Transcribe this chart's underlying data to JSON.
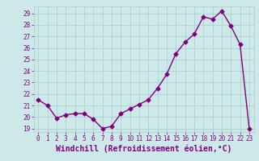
{
  "x": [
    0,
    1,
    2,
    3,
    4,
    5,
    6,
    7,
    8,
    9,
    10,
    11,
    12,
    13,
    14,
    15,
    16,
    17,
    18,
    19,
    20,
    21,
    22,
    23
  ],
  "y": [
    21.5,
    21.0,
    19.9,
    20.2,
    20.3,
    20.3,
    19.8,
    19.0,
    19.2,
    20.3,
    20.7,
    21.1,
    21.5,
    22.5,
    23.7,
    25.5,
    26.5,
    27.2,
    28.7,
    28.5,
    29.2,
    27.9,
    26.3,
    19.0
  ],
  "line_color": "#800080",
  "marker": "D",
  "marker_size": 2.5,
  "bg_color": "#cce8e8",
  "grid_color": "#aacccc",
  "xlabel": "Windchill (Refroidissement éolien,°C)",
  "xlabel_fontsize": 7,
  "ylim_min": 18.7,
  "ylim_max": 29.6,
  "yticks": [
    19,
    20,
    21,
    22,
    23,
    24,
    25,
    26,
    27,
    28,
    29
  ],
  "xticks": [
    0,
    1,
    2,
    3,
    4,
    5,
    6,
    7,
    8,
    9,
    10,
    11,
    12,
    13,
    14,
    15,
    16,
    17,
    18,
    19,
    20,
    21,
    22,
    23
  ],
  "tick_fontsize": 5.5,
  "line_width": 1.0
}
